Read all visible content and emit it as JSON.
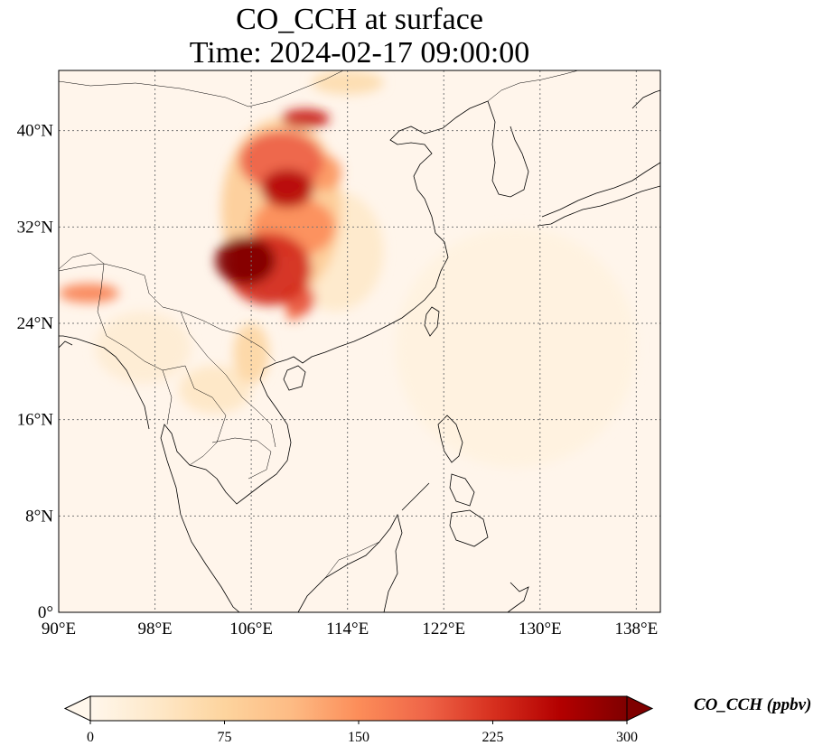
{
  "title": {
    "line1": "CO_CCH at surface",
    "line2": "Time: 2024-02-17 09:00:00"
  },
  "map": {
    "extent": {
      "lon": [
        90,
        140
      ],
      "lat": [
        0,
        45
      ]
    },
    "lon_ticks": [
      90,
      98,
      106,
      114,
      122,
      130,
      138
    ],
    "lon_tick_labels": [
      "90°E",
      "98°E",
      "106°E",
      "114°E",
      "122°E",
      "130°E",
      "138°E"
    ],
    "lat_ticks": [
      0,
      8,
      16,
      24,
      32,
      40
    ],
    "lat_tick_labels": [
      "0°",
      "8°N",
      "16°N",
      "24°N",
      "32°N",
      "40°N"
    ],
    "gridlines": true,
    "gridline_style": "dotted",
    "background_color": "#fff5eb",
    "plumes": [
      {
        "lon": 105.5,
        "lat": 29.2,
        "rlon": 2.5,
        "rlat": 2.0,
        "value": 300
      },
      {
        "lon": 107.5,
        "lat": 28.5,
        "rlon": 3.5,
        "rlat": 3.0,
        "value": 230
      },
      {
        "lon": 109.0,
        "lat": 35.2,
        "rlon": 2.2,
        "rlat": 1.6,
        "value": 260
      },
      {
        "lon": 108.5,
        "lat": 37.5,
        "rlon": 3.5,
        "rlat": 2.5,
        "value": 190
      },
      {
        "lon": 110.5,
        "lat": 41.0,
        "rlon": 2.0,
        "rlat": 0.8,
        "value": 240
      },
      {
        "lon": 109.5,
        "lat": 32.0,
        "rlon": 3.5,
        "rlat": 2.5,
        "value": 150
      },
      {
        "lon": 108.5,
        "lat": 33.5,
        "rlon": 5.0,
        "rlat": 7.5,
        "value": 85
      },
      {
        "lon": 110.0,
        "lat": 26.0,
        "rlon": 1.3,
        "rlat": 1.3,
        "value": 200
      },
      {
        "lon": 109.5,
        "lat": 24.8,
        "rlon": 0.6,
        "rlat": 0.6,
        "value": 170
      },
      {
        "lon": 112.0,
        "lat": 36.5,
        "rlon": 1.5,
        "rlat": 1.5,
        "value": 140
      },
      {
        "lon": 92.5,
        "lat": 26.5,
        "rlon": 2.5,
        "rlat": 0.8,
        "value": 160
      },
      {
        "lon": 106.0,
        "lat": 21.5,
        "rlon": 1.5,
        "rlat": 2.5,
        "value": 70
      },
      {
        "lon": 103.0,
        "lat": 18.5,
        "rlon": 3.0,
        "rlat": 2.0,
        "value": 40
      },
      {
        "lon": 114.0,
        "lat": 44.0,
        "rlon": 3.0,
        "rlat": 1.0,
        "value": 60
      },
      {
        "lon": 113.0,
        "lat": 30.0,
        "rlon": 4.0,
        "rlat": 5.0,
        "value": 35
      },
      {
        "lon": 97.0,
        "lat": 22.0,
        "rlon": 4.0,
        "rlat": 3.0,
        "value": 25
      },
      {
        "lon": 128.0,
        "lat": 22.0,
        "rlon": 10.0,
        "rlat": 10.0,
        "value": 12
      }
    ]
  },
  "colorbar": {
    "label": "CO_CCH (ppbv)",
    "min": 0,
    "max": 300,
    "extend": "both",
    "ticks": [
      0,
      75,
      150,
      225,
      300
    ],
    "tick_labels": [
      "0",
      "75",
      "150",
      "225",
      "300"
    ],
    "colormap": "OrRd",
    "colors": [
      "#fff7ec",
      "#fee8c8",
      "#fdd49e",
      "#fdbb84",
      "#fc8d59",
      "#ef6548",
      "#d7301f",
      "#b30000",
      "#7f0000"
    ]
  }
}
